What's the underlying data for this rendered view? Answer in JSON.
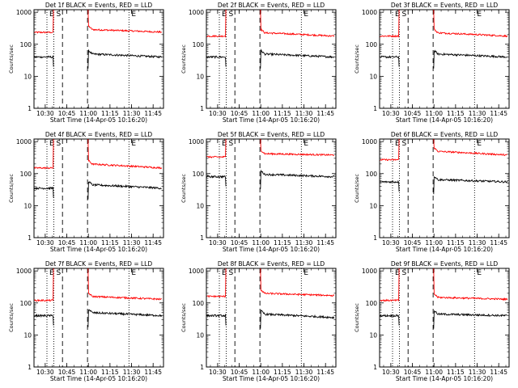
{
  "figure": {
    "ylabel": "Counts/sec",
    "xlabel": "Start Time (14-Apr-05 10:16:20)",
    "marker_labels": [
      "E",
      "S",
      "E"
    ]
  },
  "chart_data": [
    {
      "type": "line",
      "title": "Det 1f BLACK = Events, RED = LLD",
      "ylim": [
        1,
        1200
      ],
      "xlim": [
        10.37,
        11.87
      ],
      "log_y": true,
      "x_tick_labels": [
        "10:30",
        "10:45",
        "11:00",
        "11:15",
        "11:30",
        "11:45"
      ],
      "y_tick_labels": [
        "1",
        "10",
        "100",
        "1000"
      ],
      "colors": {
        "black": "#000000",
        "red": "#ff0000"
      },
      "series": [
        {
          "color": "red",
          "pre": 235,
          "post": 290,
          "end": 240
        },
        {
          "color": "black",
          "pre": 40,
          "post": 50,
          "end": 40
        }
      ]
    },
    {
      "type": "line",
      "title": "Det 2f BLACK = Events, RED = LLD",
      "ylim": [
        1,
        1200
      ],
      "xlim": [
        10.37,
        11.87
      ],
      "log_y": true,
      "x_tick_labels": [
        "10:30",
        "10:45",
        "11:00",
        "11:15",
        "11:30",
        "11:45"
      ],
      "y_tick_labels": [
        "1",
        "10",
        "100",
        "1000"
      ],
      "colors": {
        "black": "#000000",
        "red": "#ff0000"
      },
      "series": [
        {
          "color": "red",
          "pre": 180,
          "post": 230,
          "end": 180
        },
        {
          "color": "black",
          "pre": 40,
          "post": 50,
          "end": 40
        }
      ]
    },
    {
      "type": "line",
      "title": "Det 3f BLACK = Events, RED = LLD",
      "ylim": [
        1,
        1200
      ],
      "xlim": [
        10.37,
        11.87
      ],
      "log_y": true,
      "x_tick_labels": [
        "10:30",
        "10:45",
        "11:00",
        "11:15",
        "11:30",
        "11:45"
      ],
      "y_tick_labels": [
        "1",
        "10",
        "100",
        "1000"
      ],
      "colors": {
        "black": "#000000",
        "red": "#ff0000"
      },
      "series": [
        {
          "color": "red",
          "pre": 180,
          "post": 230,
          "end": 180
        },
        {
          "color": "black",
          "pre": 40,
          "post": 50,
          "end": 40
        }
      ]
    },
    {
      "type": "line",
      "title": "Det 4f BLACK = Events, RED = LLD",
      "ylim": [
        1,
        1200
      ],
      "xlim": [
        10.37,
        11.87
      ],
      "log_y": true,
      "x_tick_labels": [
        "10:30",
        "10:45",
        "11:00",
        "11:15",
        "11:30",
        "11:45"
      ],
      "y_tick_labels": [
        "1",
        "10",
        "100",
        "1000"
      ],
      "colors": {
        "black": "#000000",
        "red": "#ff0000"
      },
      "series": [
        {
          "color": "red",
          "pre": 150,
          "post": 200,
          "end": 150
        },
        {
          "color": "black",
          "pre": 35,
          "post": 45,
          "end": 35
        }
      ]
    },
    {
      "type": "line",
      "title": "Det 5f BLACK = Events, RED = LLD",
      "ylim": [
        1,
        1200
      ],
      "xlim": [
        10.37,
        11.87
      ],
      "log_y": true,
      "x_tick_labels": [
        "10:30",
        "10:45",
        "11:00",
        "11:15",
        "11:30",
        "11:45"
      ],
      "y_tick_labels": [
        "1",
        "10",
        "100",
        "1000"
      ],
      "colors": {
        "black": "#000000",
        "red": "#ff0000"
      },
      "series": [
        {
          "color": "red",
          "pre": 330,
          "post": 420,
          "end": 380
        },
        {
          "color": "black",
          "pre": 80,
          "post": 95,
          "end": 80
        }
      ]
    },
    {
      "type": "line",
      "title": "Det 6f BLACK = Events, RED = LLD",
      "ylim": [
        1,
        1200
      ],
      "xlim": [
        10.37,
        11.87
      ],
      "log_y": true,
      "x_tick_labels": [
        "10:30",
        "10:45",
        "11:00",
        "11:15",
        "11:30",
        "11:45"
      ],
      "y_tick_labels": [
        "1",
        "10",
        "100",
        "1000"
      ],
      "colors": {
        "black": "#000000",
        "red": "#ff0000"
      },
      "series": [
        {
          "color": "red",
          "pre": 270,
          "post": 500,
          "end": 380
        },
        {
          "color": "black",
          "pre": 55,
          "post": 65,
          "end": 55
        }
      ]
    },
    {
      "type": "line",
      "title": "Det 7f BLACK = Events, RED = LLD",
      "ylim": [
        1,
        1200
      ],
      "xlim": [
        10.37,
        11.87
      ],
      "log_y": true,
      "x_tick_labels": [
        "10:30",
        "10:45",
        "11:00",
        "11:15",
        "11:30",
        "11:45"
      ],
      "y_tick_labels": [
        "1",
        "10",
        "100",
        "1000"
      ],
      "colors": {
        "black": "#000000",
        "red": "#ff0000"
      },
      "series": [
        {
          "color": "red",
          "pre": 120,
          "post": 160,
          "end": 130
        },
        {
          "color": "black",
          "pre": 40,
          "post": 50,
          "end": 40
        }
      ]
    },
    {
      "type": "line",
      "title": "Det 8f BLACK = Events, RED = LLD",
      "ylim": [
        1,
        1200
      ],
      "xlim": [
        10.37,
        11.87
      ],
      "log_y": true,
      "x_tick_labels": [
        "10:30",
        "10:45",
        "11:00",
        "11:15",
        "11:30",
        "11:45"
      ],
      "y_tick_labels": [
        "1",
        "10",
        "100",
        "1000"
      ],
      "colors": {
        "black": "#000000",
        "red": "#ff0000"
      },
      "series": [
        {
          "color": "red",
          "pre": 160,
          "post": 200,
          "end": 170
        },
        {
          "color": "black",
          "pre": 40,
          "post": 45,
          "end": 35
        }
      ]
    },
    {
      "type": "line",
      "title": "Det 9f BLACK = Events, RED = LLD",
      "ylim": [
        1,
        1200
      ],
      "xlim": [
        10.37,
        11.87
      ],
      "log_y": true,
      "x_tick_labels": [
        "10:30",
        "10:45",
        "11:00",
        "11:15",
        "11:30",
        "11:45"
      ],
      "y_tick_labels": [
        "1",
        "10",
        "100",
        "1000"
      ],
      "colors": {
        "black": "#000000",
        "red": "#ff0000"
      },
      "series": [
        {
          "color": "red",
          "pre": 120,
          "post": 150,
          "end": 130
        },
        {
          "color": "black",
          "pre": 40,
          "post": 45,
          "end": 40
        }
      ]
    }
  ]
}
